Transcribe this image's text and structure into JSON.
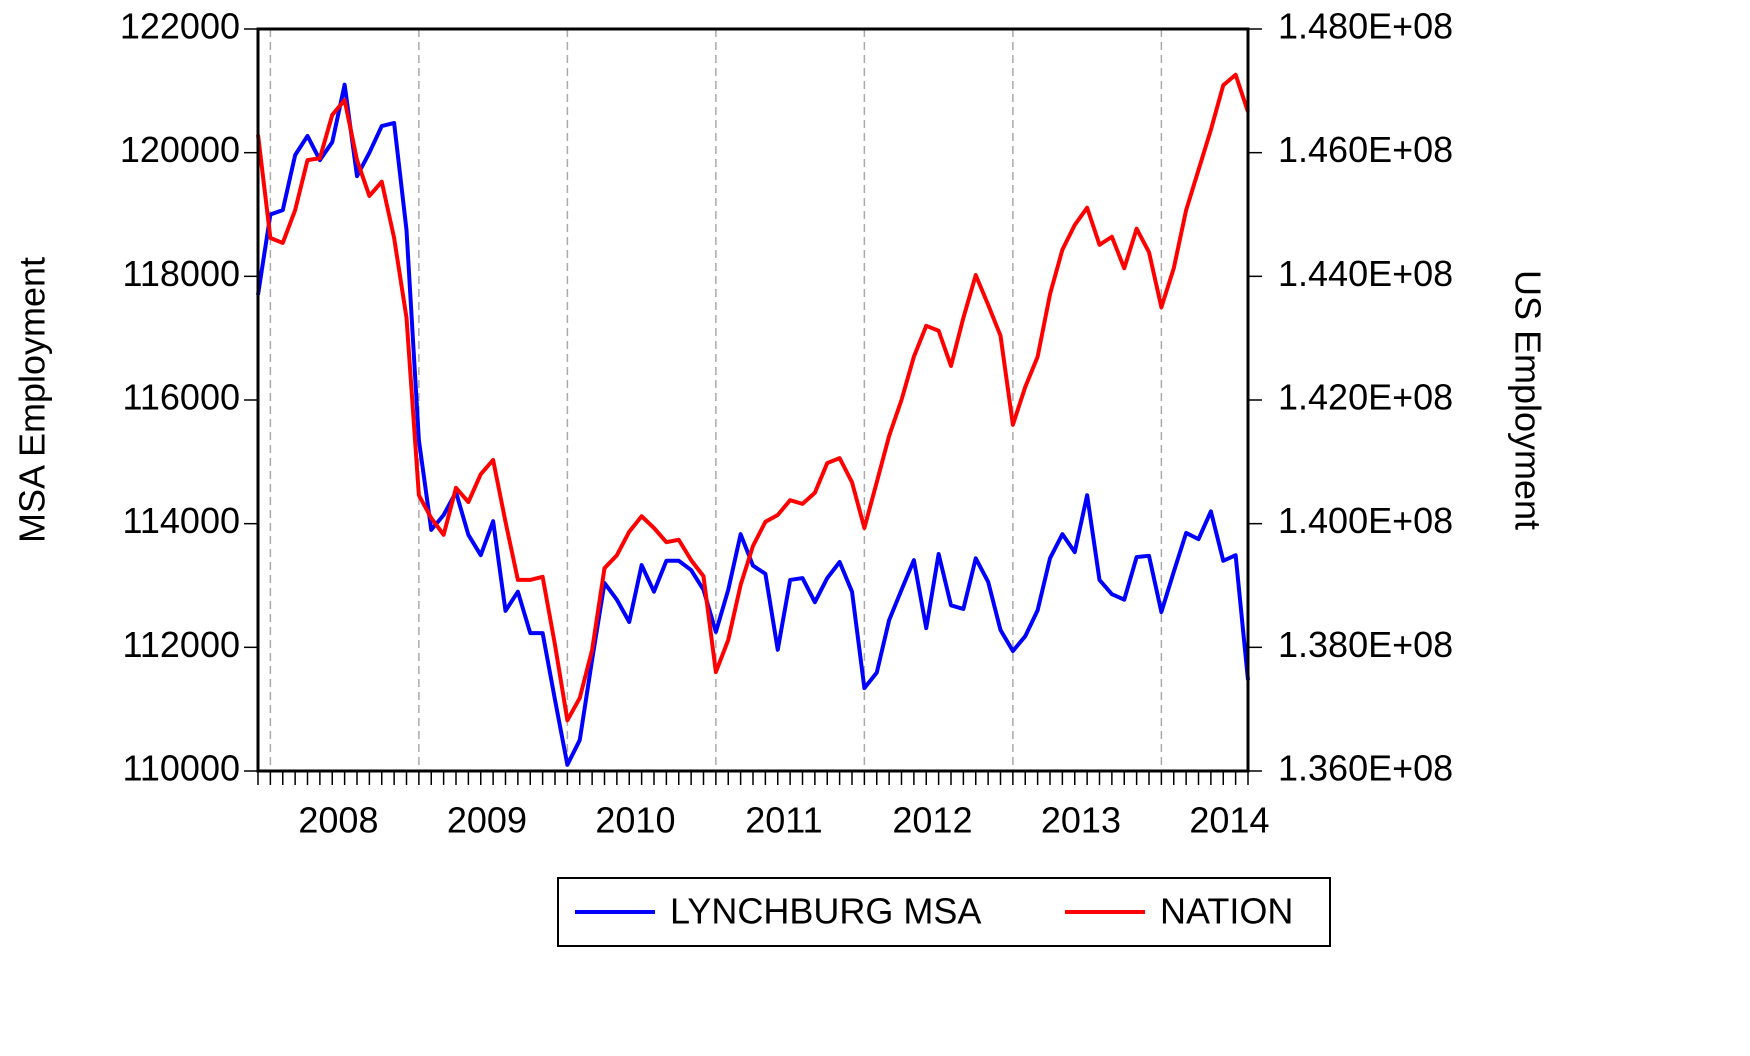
{
  "chart_data": {
    "type": "line",
    "y_label": "MSA Employment",
    "y2_label": "US Employment",
    "categories": [
      null,
      null,
      null,
      null,
      null,
      null,
      "2008",
      null,
      null,
      null,
      null,
      null,
      null,
      null,
      null,
      null,
      null,
      null,
      "2009",
      null,
      null,
      null,
      null,
      null,
      null,
      null,
      null,
      null,
      null,
      null,
      "2010",
      null,
      null,
      null,
      null,
      null,
      null,
      null,
      null,
      null,
      null,
      null,
      "2011",
      null,
      null,
      null,
      null,
      null,
      null,
      null,
      null,
      null,
      null,
      null,
      "2012",
      null,
      null,
      null,
      null,
      null,
      null,
      null,
      null,
      null,
      null,
      null,
      "2013",
      null,
      null,
      null,
      null,
      null,
      null,
      null,
      null,
      null,
      null,
      null,
      "2014",
      null,
      null
    ],
    "series": [
      {
        "name": "LYNCHBURG MSA",
        "color": "#0000ff",
        "axis": "y",
        "values": [
          117700,
          119000,
          119070,
          119960,
          120270,
          119880,
          120170,
          121100,
          119620,
          120000,
          120430,
          120480,
          118750,
          115350,
          113900,
          114140,
          114510,
          113820,
          113490,
          114040,
          112590,
          112900,
          112230,
          112230,
          111150,
          110100,
          110500,
          111800,
          113040,
          112770,
          112410,
          113330,
          112900,
          113400,
          113400,
          113250,
          112930,
          112250,
          112930,
          113830,
          113320,
          113190,
          111960,
          113090,
          113120,
          112730,
          113120,
          113380,
          112900,
          111340,
          111590,
          112440,
          112930,
          113410,
          112310,
          113510,
          112680,
          112620,
          113440,
          113060,
          112280,
          111940,
          112180,
          112600,
          113440,
          113830,
          113540,
          114460,
          113090,
          112860,
          112770,
          113460,
          113480,
          112570,
          113220,
          113850,
          113750,
          114200,
          113400,
          113490,
          111470
        ]
      },
      {
        "name": "NATION",
        "color": "#ff0000",
        "axis": "y2",
        "values": [
          146290000,
          144620000,
          144540000,
          145070000,
          145880000,
          145910000,
          146610000,
          146850000,
          145880000,
          145300000,
          145530000,
          144620000,
          143330000,
          140460000,
          140090000,
          139820000,
          140580000,
          140350000,
          140800000,
          141030000,
          140030000,
          139090000,
          139090000,
          139140000,
          138040000,
          136820000,
          137180000,
          137960000,
          139280000,
          139490000,
          139870000,
          140120000,
          139930000,
          139700000,
          139740000,
          139410000,
          139150000,
          137600000,
          138120000,
          139010000,
          139640000,
          140030000,
          140140000,
          140380000,
          140320000,
          140500000,
          140980000,
          141060000,
          140670000,
          139930000,
          140670000,
          141420000,
          142000000,
          142700000,
          143200000,
          143120000,
          142550000,
          143330000,
          144020000,
          143540000,
          143040000,
          141600000,
          142210000,
          142700000,
          143710000,
          144430000,
          144830000,
          145110000,
          144510000,
          144640000,
          144130000,
          144770000,
          144390000,
          143500000,
          144130000,
          145070000,
          145720000,
          146370000,
          147090000,
          147260000,
          146660000
        ]
      }
    ],
    "ylim": [
      110000,
      122000
    ],
    "yticks": [
      110000,
      112000,
      114000,
      116000,
      118000,
      120000,
      122000
    ],
    "y2lim": [
      136000000,
      148000000
    ],
    "y2ticks": [
      {
        "value": 136000000,
        "label": "1.360E+08"
      },
      {
        "value": 138000000,
        "label": "1.380E+08"
      },
      {
        "value": 140000000,
        "label": "1.400E+08"
      },
      {
        "value": 142000000,
        "label": "1.420E+08"
      },
      {
        "value": 144000000,
        "label": "1.440E+08"
      },
      {
        "value": 146000000,
        "label": "1.460E+08"
      },
      {
        "value": 148000000,
        "label": "1.480E+08"
      }
    ],
    "legend": "bottom"
  }
}
